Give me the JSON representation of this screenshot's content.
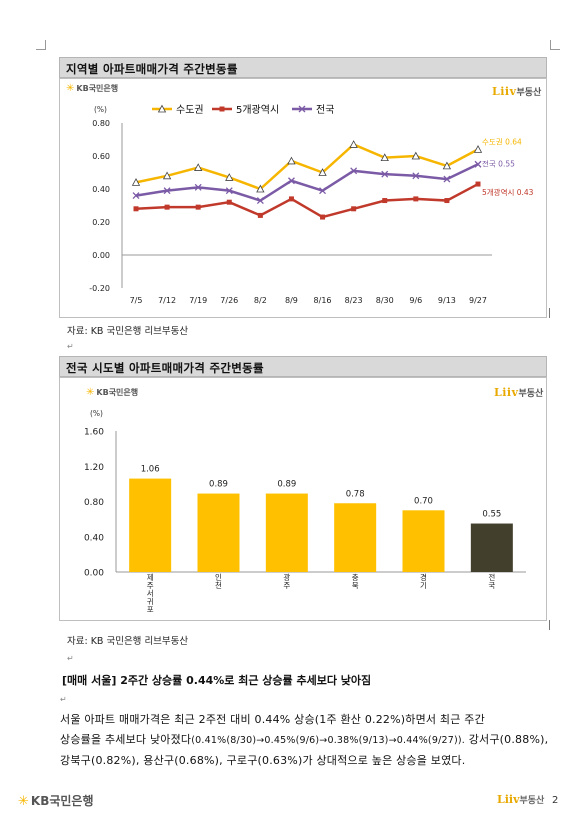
{
  "panel1": {
    "title": "지역별 아파트매매가격 주간변동률",
    "kb_logo": "KB국민은행",
    "liiv_brand": "Liiv",
    "liiv_suffix": "부동산",
    "source": "자료: KB 국민은행 리브부동산"
  },
  "panel2": {
    "title": "전국 시도별 아파트매매가격 주간변동률",
    "kb_logo": "KB국민은행",
    "liiv_brand": "Liiv",
    "liiv_suffix": "부동산",
    "source": "자료: KB 국민은행 리브부동산"
  },
  "article": {
    "heading": "[매매 서울] 2주간 상승률 0.44%로 최근 상승률 추세보다 낮아짐",
    "line1_a": "서울 아파트 매매가격은 최근 2주전 대비 0.44% 상승(1주 환산 0.22%)하면서 최근 주간",
    "line2_a": "상승률을 추세보다 낮아졌다",
    "line2_b": "(0.41%(8/30)→0.45%(9/6)→0.38%(9/13)→0.44%(9/27)).",
    "line2_c": " 강서구(0.88%),",
    "line3": "강북구(0.82%), 용산구(0.68%), 구로구(0.63%)가 상대적으로 높은 상승을 보였다."
  },
  "footer": {
    "kb_logo": "KB국민은행",
    "liiv_brand": "Liiv",
    "liiv_suffix": "부동산",
    "page_number": "2"
  },
  "colors": {
    "capital": "#f6b600",
    "metro5": "#c0392b",
    "national": "#7b5aa6",
    "bar": "#ffc000",
    "bar_national": "#423f2c"
  },
  "chart_data": [
    {
      "type": "line",
      "ylabel_unit": "(%)",
      "x": [
        "7/5",
        "7/12",
        "7/19",
        "7/26",
        "8/2",
        "8/9",
        "8/16",
        "8/23",
        "8/30",
        "9/6",
        "9/13",
        "9/27"
      ],
      "ylim": [
        -0.2,
        0.8
      ],
      "yticks": [
        "0.80",
        "0.60",
        "0.40",
        "0.20",
        "0.00",
        "-0.20"
      ],
      "grid": false,
      "legend": "top",
      "series": [
        {
          "name": "수도권",
          "values": [
            0.44,
            0.48,
            0.53,
            0.47,
            0.4,
            0.57,
            0.5,
            0.67,
            0.59,
            0.6,
            0.54,
            0.64
          ],
          "end_label": "수도권 0.64",
          "marker": "triangle"
        },
        {
          "name": "5개광역시",
          "values": [
            0.28,
            0.29,
            0.29,
            0.32,
            0.24,
            0.34,
            0.23,
            0.28,
            0.33,
            0.34,
            0.33,
            0.43
          ],
          "end_label": "5개광역시 0.43",
          "marker": "square"
        },
        {
          "name": "전국",
          "values": [
            0.36,
            0.39,
            0.41,
            0.39,
            0.33,
            0.45,
            0.39,
            0.51,
            0.49,
            0.48,
            0.46,
            0.55
          ],
          "end_label": "전국 0.55",
          "marker": "x"
        }
      ]
    },
    {
      "type": "bar",
      "ylabel_unit": "(%)",
      "categories": [
        "제주서귀포",
        "인천",
        "광주",
        "충북",
        "경기",
        "전국"
      ],
      "values": [
        1.06,
        0.89,
        0.89,
        0.78,
        0.7,
        0.55
      ],
      "value_labels": [
        "1.06",
        "0.89",
        "0.89",
        "0.78",
        "0.70",
        "0.55"
      ],
      "ylim": [
        0,
        1.6
      ],
      "yticks": [
        "1.60",
        "1.20",
        "0.80",
        "0.40",
        "0.00"
      ],
      "grid": false
    }
  ]
}
